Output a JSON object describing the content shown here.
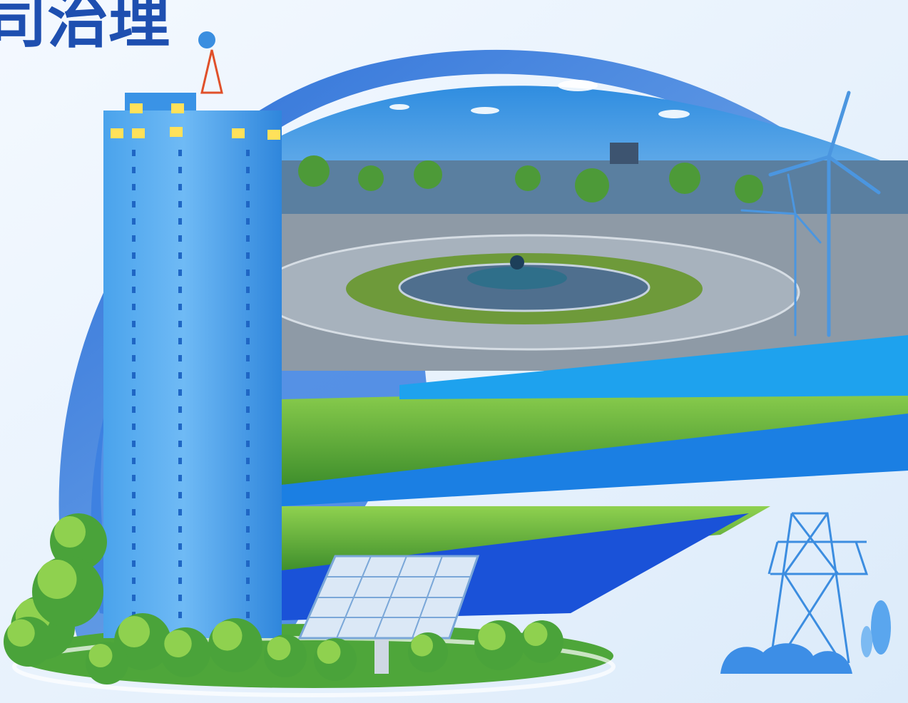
{
  "header": {
    "title": "司治理"
  }
}
